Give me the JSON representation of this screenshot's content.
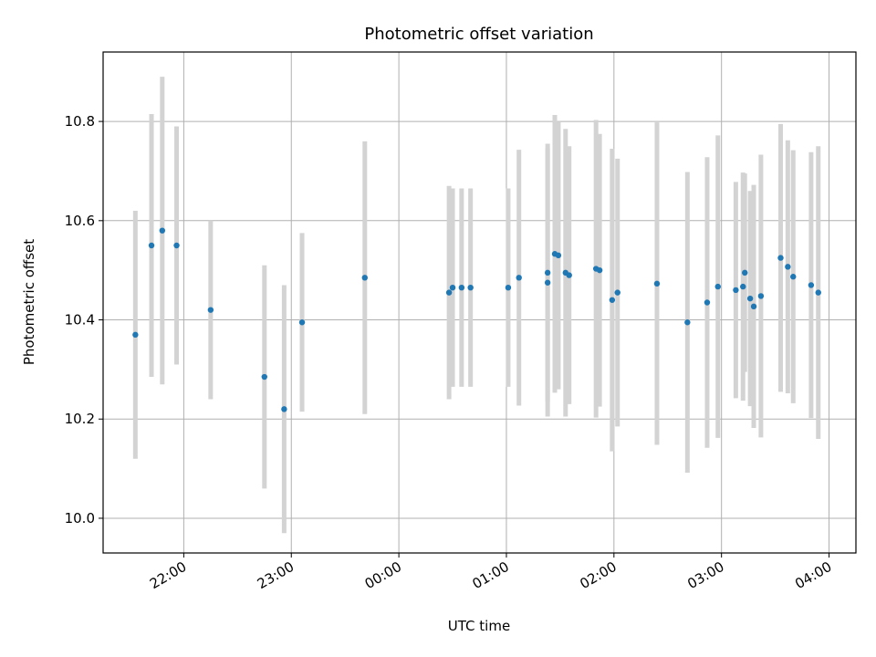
{
  "chart_data": {
    "type": "scatter",
    "title": "Photometric offset variation",
    "xlabel": "UTC time",
    "ylabel": "Photometric offset",
    "x_ticks": [
      "22:00",
      "23:00",
      "00:00",
      "01:00",
      "02:00",
      "03:00",
      "04:00"
    ],
    "y_ticks": [
      "10.0",
      "10.2",
      "10.4",
      "10.6",
      "10.8"
    ],
    "xlim": [
      "21:15",
      "04:15"
    ],
    "ylim": [
      9.93,
      10.94
    ],
    "grid": true,
    "colors": {
      "point": "#1f77b4",
      "errorbar": "#d3d3d3",
      "grid": "#b0b0b0"
    },
    "series": [
      {
        "points": [
          {
            "x": "21:33",
            "y": 10.37,
            "err": 0.25
          },
          {
            "x": "21:42",
            "y": 10.55,
            "err": 0.265
          },
          {
            "x": "21:48",
            "y": 10.58,
            "err": 0.31
          },
          {
            "x": "21:56",
            "y": 10.55,
            "err": 0.24
          },
          {
            "x": "22:15",
            "y": 10.42,
            "err": 0.18
          },
          {
            "x": "22:45",
            "y": 10.285,
            "err": 0.225
          },
          {
            "x": "22:56",
            "y": 10.22,
            "err": 0.25
          },
          {
            "x": "23:06",
            "y": 10.395,
            "err": 0.18
          },
          {
            "x": "23:41",
            "y": 10.485,
            "err": 0.275
          },
          {
            "x": "00:28",
            "y": 10.455,
            "err": 0.215
          },
          {
            "x": "00:30",
            "y": 10.465,
            "err": 0.2
          },
          {
            "x": "00:35",
            "y": 10.465,
            "err": 0.2
          },
          {
            "x": "00:40",
            "y": 10.465,
            "err": 0.2
          },
          {
            "x": "01:01",
            "y": 10.465,
            "err": 0.2
          },
          {
            "x": "01:07",
            "y": 10.485,
            "err": 0.258
          },
          {
            "x": "01:23",
            "y": 10.475,
            "err": 0.27
          },
          {
            "x": "01:23",
            "y": 10.495,
            "err": 0.26
          },
          {
            "x": "01:27",
            "y": 10.533,
            "err": 0.28
          },
          {
            "x": "01:29",
            "y": 10.53,
            "err": 0.27
          },
          {
            "x": "01:33",
            "y": 10.495,
            "err": 0.29
          },
          {
            "x": "01:35",
            "y": 10.49,
            "err": 0.26
          },
          {
            "x": "01:50",
            "y": 10.503,
            "err": 0.3
          },
          {
            "x": "01:52",
            "y": 10.5,
            "err": 0.275
          },
          {
            "x": "01:59",
            "y": 10.44,
            "err": 0.305
          },
          {
            "x": "02:02",
            "y": 10.455,
            "err": 0.27
          },
          {
            "x": "02:24",
            "y": 10.473,
            "err": 0.325
          },
          {
            "x": "02:41",
            "y": 10.395,
            "err": 0.303
          },
          {
            "x": "02:52",
            "y": 10.435,
            "err": 0.293
          },
          {
            "x": "02:58",
            "y": 10.467,
            "err": 0.305
          },
          {
            "x": "03:08",
            "y": 10.46,
            "err": 0.218
          },
          {
            "x": "03:12",
            "y": 10.467,
            "err": 0.23
          },
          {
            "x": "03:13",
            "y": 10.495,
            "err": 0.2
          },
          {
            "x": "03:16",
            "y": 10.443,
            "err": 0.217
          },
          {
            "x": "03:18",
            "y": 10.427,
            "err": 0.245
          },
          {
            "x": "03:22",
            "y": 10.448,
            "err": 0.285
          },
          {
            "x": "03:33",
            "y": 10.525,
            "err": 0.27
          },
          {
            "x": "03:37",
            "y": 10.507,
            "err": 0.255
          },
          {
            "x": "03:40",
            "y": 10.487,
            "err": 0.255
          },
          {
            "x": "03:50",
            "y": 10.47,
            "err": 0.268
          },
          {
            "x": "03:54",
            "y": 10.455,
            "err": 0.295
          }
        ]
      }
    ]
  }
}
